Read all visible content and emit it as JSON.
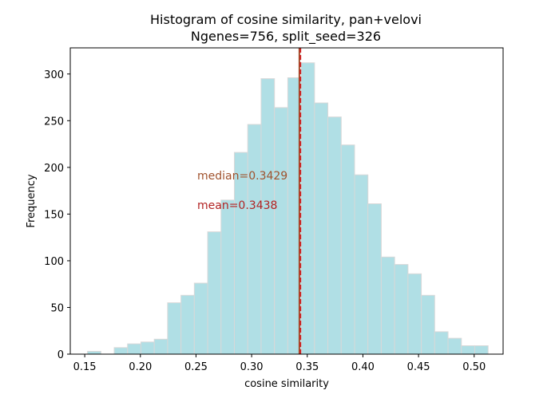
{
  "chart_data": {
    "type": "histogram",
    "title": "Histogram of cosine similarity, pan+velovi",
    "subtitle": "Ngenes=756, split_seed=326",
    "xlabel": "cosine similarity",
    "ylabel": "Frequency",
    "xlim": [
      0.137,
      0.526
    ],
    "ylim": [
      0,
      328
    ],
    "x_ticks": [
      "0.15",
      "0.20",
      "0.25",
      "0.30",
      "0.35",
      "0.40",
      "0.45",
      "0.50"
    ],
    "x_tick_values": [
      0.15,
      0.2,
      0.25,
      0.3,
      0.35,
      0.4,
      0.45,
      0.5
    ],
    "y_ticks": [
      "0",
      "50",
      "100",
      "150",
      "200",
      "250",
      "300"
    ],
    "y_tick_values": [
      0,
      50,
      100,
      150,
      200,
      250,
      300
    ],
    "bin_start": 0.1525,
    "bin_width": 0.012,
    "counts": [
      3,
      0,
      7,
      11,
      13,
      16,
      55,
      63,
      76,
      131,
      165,
      216,
      246,
      295,
      264,
      296,
      312,
      269,
      254,
      224,
      192,
      161,
      104,
      96,
      86,
      63,
      24,
      17,
      9,
      9
    ],
    "bar_color": "#b0dfe5",
    "bar_edge_color": "#d8d8d8",
    "lines": [
      {
        "label": "median",
        "value": 0.3429,
        "color": "#a0522d",
        "style": "solid"
      },
      {
        "label": "mean",
        "value": 0.3438,
        "color": "#cc2222",
        "style": "dashed"
      }
    ],
    "annotations": [
      {
        "text": "median=0.3429",
        "color": "#a0522d"
      },
      {
        "text": "mean=0.3438",
        "color": "#b22222"
      }
    ],
    "grid": false
  }
}
